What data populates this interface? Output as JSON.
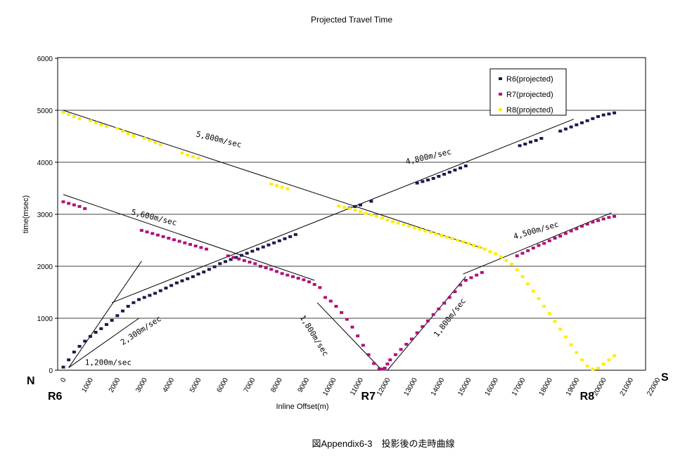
{
  "chart_data": {
    "type": "scatter",
    "title": "Projected Travel Time",
    "xlabel": "Inline Offset(m)",
    "ylabel": "time(msec)",
    "xlim": [
      0,
      22000
    ],
    "ylim": [
      0,
      6000
    ],
    "x_ticks": [
      0,
      1000,
      2000,
      3000,
      4000,
      5000,
      6000,
      7000,
      8000,
      9000,
      10000,
      11000,
      12000,
      13000,
      14000,
      15000,
      16000,
      17000,
      18000,
      19000,
      20000,
      21000,
      22000
    ],
    "y_ticks": [
      0,
      1000,
      2000,
      3000,
      4000,
      5000,
      6000
    ],
    "grid": "horizontal",
    "legend_position": "top-right",
    "series": [
      {
        "name": "R6(projected)",
        "color": "#1a1a4e",
        "x": [
          0,
          200,
          400,
          600,
          800,
          1000,
          1200,
          1400,
          1600,
          1800,
          2000,
          2200,
          2400,
          2600,
          2800,
          3000,
          3200,
          3400,
          3600,
          3800,
          4000,
          4200,
          4400,
          4600,
          4800,
          5000,
          5200,
          5400,
          5600,
          5800,
          6000,
          6200,
          6400,
          6600,
          6800,
          7000,
          7200,
          7400,
          7600,
          7800,
          8000,
          8200,
          8400,
          8600,
          10600,
          10800,
          11000,
          11400,
          13100,
          13300,
          13500,
          13700,
          13900,
          14100,
          14300,
          14500,
          14700,
          14900,
          16900,
          17100,
          17300,
          17500,
          17700,
          18400,
          18600,
          18800,
          19000,
          19200,
          19400,
          19600,
          19800,
          20000,
          20200,
          20400
        ],
        "y": [
          60,
          200,
          350,
          460,
          560,
          650,
          730,
          800,
          880,
          960,
          1050,
          1140,
          1230,
          1300,
          1360,
          1400,
          1440,
          1480,
          1530,
          1580,
          1630,
          1680,
          1720,
          1760,
          1800,
          1850,
          1890,
          1940,
          1990,
          2050,
          2090,
          2130,
          2170,
          2210,
          2250,
          2290,
          2330,
          2370,
          2410,
          2450,
          2490,
          2530,
          2570,
          2610,
          3120,
          3150,
          3180,
          3250,
          3600,
          3630,
          3660,
          3690,
          3730,
          3770,
          3810,
          3850,
          3890,
          3930,
          4320,
          4350,
          4390,
          4420,
          4460,
          4600,
          4640,
          4680,
          4720,
          4760,
          4800,
          4840,
          4880,
          4910,
          4930,
          4950
        ]
      },
      {
        "name": "R7(projected)",
        "color": "#b0107a",
        "x": [
          0,
          200,
          400,
          600,
          800,
          2900,
          3100,
          3300,
          3500,
          3700,
          3900,
          4100,
          4300,
          4500,
          4700,
          4900,
          5100,
          5300,
          6100,
          6300,
          6500,
          6700,
          6900,
          7100,
          7300,
          7500,
          7700,
          7900,
          8100,
          8300,
          8500,
          8700,
          8900,
          9100,
          9300,
          9500,
          9700,
          9900,
          10100,
          10300,
          10500,
          10700,
          10900,
          11100,
          11300,
          11500,
          11700,
          11800,
          11900,
          12000,
          12100,
          12300,
          12500,
          12700,
          12900,
          13100,
          13300,
          13500,
          13700,
          13900,
          14100,
          14300,
          14500,
          14700,
          14900,
          15100,
          15300,
          15500,
          16800,
          17000,
          17200,
          17400,
          17600,
          17800,
          18000,
          18200,
          18400,
          18600,
          18800,
          19000,
          19200,
          19400,
          19600,
          19800,
          20000,
          20200,
          20400
        ],
        "y": [
          3240,
          3210,
          3180,
          3150,
          3110,
          2690,
          2660,
          2630,
          2600,
          2570,
          2540,
          2510,
          2480,
          2450,
          2420,
          2390,
          2360,
          2330,
          2200,
          2170,
          2140,
          2110,
          2080,
          2050,
          2000,
          1970,
          1940,
          1900,
          1860,
          1830,
          1800,
          1770,
          1740,
          1700,
          1650,
          1590,
          1400,
          1330,
          1230,
          1110,
          980,
          830,
          660,
          480,
          300,
          130,
          30,
          20,
          40,
          120,
          200,
          300,
          400,
          500,
          600,
          720,
          840,
          950,
          1070,
          1180,
          1290,
          1400,
          1510,
          1640,
          1730,
          1780,
          1830,
          1880,
          2200,
          2250,
          2300,
          2350,
          2400,
          2440,
          2490,
          2540,
          2580,
          2630,
          2680,
          2720,
          2770,
          2810,
          2850,
          2880,
          2910,
          2940,
          2960
        ]
      },
      {
        "name": "R8(projected)",
        "color": "#ffee00",
        "x": [
          0,
          200,
          400,
          600,
          1000,
          1200,
          1400,
          1600,
          2000,
          2200,
          2400,
          2600,
          3000,
          3200,
          3400,
          3600,
          4400,
          4600,
          4800,
          5000,
          7700,
          7900,
          8100,
          8300,
          10200,
          10400,
          10600,
          10800,
          11000,
          11200,
          11400,
          11600,
          11800,
          12000,
          12200,
          12400,
          12600,
          12800,
          13000,
          13200,
          13400,
          13600,
          13800,
          14000,
          14200,
          14400,
          14600,
          14800,
          15000,
          15200,
          15400,
          15600,
          15800,
          16000,
          16200,
          16400,
          16600,
          16800,
          17000,
          17200,
          17400,
          17600,
          17800,
          18000,
          18200,
          18400,
          18600,
          18800,
          19000,
          19200,
          19400,
          19600,
          19800,
          20000,
          20200,
          20400
        ],
        "y": [
          4960,
          4920,
          4880,
          4840,
          4800,
          4760,
          4720,
          4690,
          4650,
          4600,
          4550,
          4510,
          4460,
          4420,
          4380,
          4340,
          4180,
          4140,
          4110,
          4080,
          3580,
          3550,
          3520,
          3490,
          3160,
          3130,
          3110,
          3080,
          3050,
          3020,
          2990,
          2960,
          2930,
          2890,
          2860,
          2830,
          2800,
          2770,
          2740,
          2710,
          2680,
          2650,
          2620,
          2590,
          2560,
          2530,
          2500,
          2470,
          2440,
          2400,
          2370,
          2330,
          2280,
          2240,
          2180,
          2110,
          2040,
          1930,
          1800,
          1660,
          1520,
          1380,
          1230,
          1090,
          940,
          790,
          640,
          490,
          340,
          200,
          80,
          20,
          40,
          120,
          200,
          280
        ]
      }
    ],
    "trend_lines": [
      {
        "from": [
          0,
          5000
        ],
        "to": [
          15500,
          2350
        ]
      },
      {
        "from": [
          0,
          3380
        ],
        "to": [
          9300,
          1730
        ]
      },
      {
        "from": [
          1800,
          1300
        ],
        "to": [
          18900,
          4830
        ]
      },
      {
        "from": [
          200,
          50
        ],
        "to": [
          2800,
          1000
        ]
      },
      {
        "from": [
          200,
          50
        ],
        "to": [
          2900,
          2100
        ]
      },
      {
        "from": [
          9400,
          1300
        ],
        "to": [
          11800,
          0
        ]
      },
      {
        "from": [
          12000,
          0
        ],
        "to": [
          14900,
          1800
        ]
      },
      {
        "from": [
          14800,
          1850
        ],
        "to": [
          20300,
          3030
        ]
      }
    ],
    "annotations": [
      {
        "text": "5,800m/sec",
        "x": 4900,
        "y": 4500,
        "rotate": 14
      },
      {
        "text": "5,600m/sec",
        "x": 2500,
        "y": 3000,
        "rotate": 14
      },
      {
        "text": "4,800m/sec",
        "x": 12700,
        "y": 3960,
        "rotate": -13
      },
      {
        "text": "4,500m/sec",
        "x": 16700,
        "y": 2520,
        "rotate": -16
      },
      {
        "text": "2,300m/sec",
        "x": 2200,
        "y": 480,
        "rotate": -33
      },
      {
        "text": "1,200m/sec",
        "x": 800,
        "y": 100,
        "rotate": 0
      },
      {
        "text": "1,800m/sec",
        "x": 8750,
        "y": 1020,
        "rotate": 58
      },
      {
        "text": "1,800m/sec",
        "x": 13850,
        "y": 630,
        "rotate": -52
      }
    ]
  },
  "markers": {
    "north": "N",
    "south": "S",
    "receivers": [
      {
        "label": "R6",
        "x": 0
      },
      {
        "label": "R7",
        "x": 11600
      },
      {
        "label": "R8",
        "x": 19700
      }
    ]
  },
  "caption": "図Appendix6-3　投影後の走時曲線"
}
